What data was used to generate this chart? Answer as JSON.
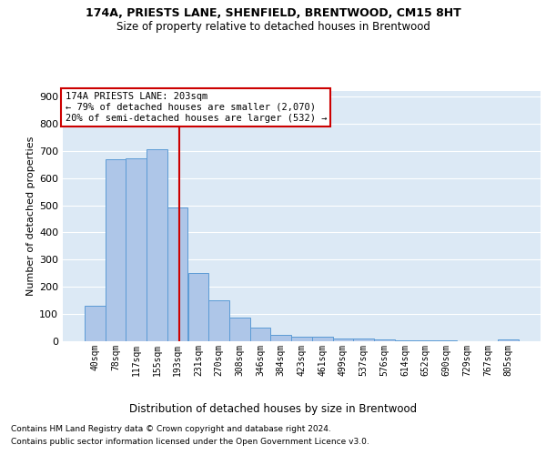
{
  "title1": "174A, PRIESTS LANE, SHENFIELD, BRENTWOOD, CM15 8HT",
  "title2": "Size of property relative to detached houses in Brentwood",
  "xlabel": "Distribution of detached houses by size in Brentwood",
  "ylabel": "Number of detached properties",
  "bar_labels": [
    "40sqm",
    "78sqm",
    "117sqm",
    "155sqm",
    "193sqm",
    "231sqm",
    "270sqm",
    "308sqm",
    "346sqm",
    "384sqm",
    "423sqm",
    "461sqm",
    "499sqm",
    "537sqm",
    "576sqm",
    "614sqm",
    "652sqm",
    "690sqm",
    "729sqm",
    "767sqm",
    "805sqm"
  ],
  "bar_values": [
    130,
    670,
    672,
    705,
    493,
    252,
    150,
    87,
    50,
    22,
    18,
    18,
    10,
    10,
    7,
    3,
    2,
    2,
    1,
    1,
    8
  ],
  "bar_color": "#aec6e8",
  "bar_edge_color": "#5b9bd5",
  "bg_color": "#dce9f5",
  "grid_color": "#ffffff",
  "vline_x": 4.08,
  "vline_color": "#cc0000",
  "annotation_box_text": "174A PRIESTS LANE: 203sqm\n← 79% of detached houses are smaller (2,070)\n20% of semi-detached houses are larger (532) →",
  "annotation_box_color": "#cc0000",
  "footer1": "Contains HM Land Registry data © Crown copyright and database right 2024.",
  "footer2": "Contains public sector information licensed under the Open Government Licence v3.0.",
  "ylim": [
    0,
    920
  ],
  "yticks": [
    0,
    100,
    200,
    300,
    400,
    500,
    600,
    700,
    800,
    900
  ]
}
